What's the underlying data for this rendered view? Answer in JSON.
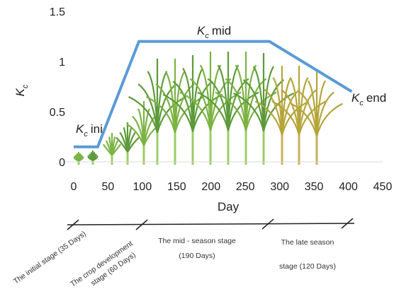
{
  "chart_data": {
    "type": "line",
    "x_label": "Day",
    "y_label": {
      "text": "K",
      "sub": "c"
    },
    "x": [
      0,
      35,
      95,
      285,
      405
    ],
    "series": [
      {
        "color": "#5b9bd5",
        "values": [
          0.15,
          0.15,
          1.2,
          1.2,
          0.7
        ]
      }
    ],
    "xlim": [
      0,
      450
    ],
    "xticks": [
      0,
      50,
      100,
      150,
      200,
      250,
      300,
      350,
      400,
      450
    ],
    "ylim": [
      0,
      1.5
    ],
    "yticks": [
      0,
      0.5,
      1,
      1.5
    ],
    "annotations": [
      {
        "text": "K",
        "sub": "c",
        "suffix": "ini"
      },
      {
        "text": "K",
        "sub": "c",
        "suffix": "mid"
      },
      {
        "text": "K",
        "sub": "c",
        "suffix": "end"
      }
    ],
    "stages": [
      {
        "lines": [
          "The initial stage (35 Days)"
        ]
      },
      {
        "lines": [
          "The crop development",
          "stage (60 Days)"
        ]
      },
      {
        "lines": [
          "The mid - season stage",
          "(190 Days)"
        ]
      },
      {
        "lines": [
          "The late season",
          "stage (120 Days)"
        ]
      }
    ]
  }
}
